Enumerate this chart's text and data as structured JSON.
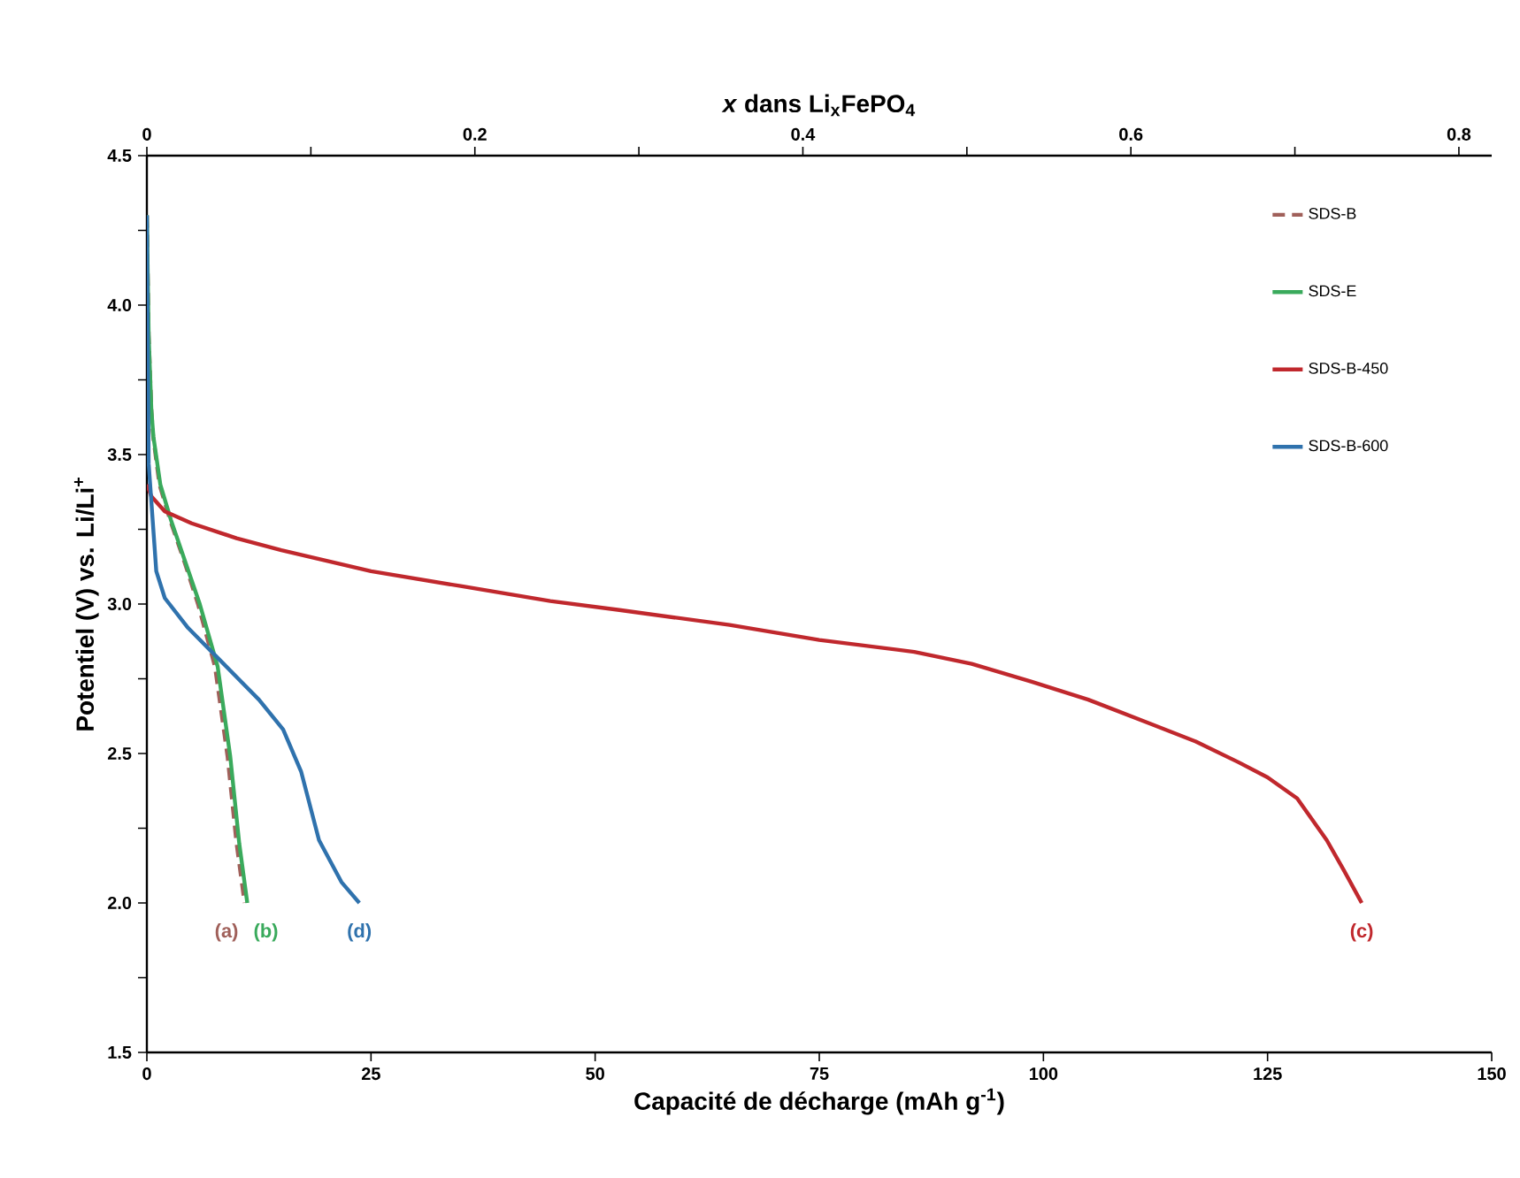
{
  "chart_data": {
    "type": "line",
    "xlabel": "Capacité de décharge (mAh g$^{-1}$)",
    "ylabel": "Potentiel (V) vs. Li/Li$^{+}$",
    "x2label": "*x* dans Li$_{x}$FePO$_{4}$",
    "xlim": [
      0,
      150
    ],
    "xticks": [
      0,
      25,
      50,
      75,
      100,
      125,
      150
    ],
    "ylim": [
      1.5,
      4.5
    ],
    "yticks": [
      {
        "value": 1.5,
        "label": "1.5"
      },
      {
        "value": 1.75,
        "label": null
      },
      {
        "value": 2,
        "label": "2.0"
      },
      {
        "value": 2.25,
        "label": null
      },
      {
        "value": 2.5,
        "label": "2.5"
      },
      {
        "value": 2.75,
        "label": null
      },
      {
        "value": 3,
        "label": "3.0"
      },
      {
        "value": 3.25,
        "label": null
      },
      {
        "value": 3.5,
        "label": "3.5"
      },
      {
        "value": 3.75,
        "label": null
      },
      {
        "value": 4,
        "label": "4.0"
      },
      {
        "value": 4.25,
        "label": null
      },
      {
        "value": 4.5,
        "label": "4.5"
      }
    ],
    "x2lim": [
      0,
      0.82
    ],
    "x2ticks": [
      0,
      {
        "value": 0.1,
        "label": null
      },
      0.2,
      {
        "value": 0.3,
        "label": null
      },
      0.4,
      {
        "value": 0.5,
        "label": null
      },
      0.6,
      {
        "value": 0.7,
        "label": null
      },
      0.8
    ],
    "legend": "top right",
    "grid": false,
    "series": [
      {
        "name": "SDS-B",
        "color": "#a0605a",
        "line_style": "dashed",
        "x": [
          0,
          0.2,
          0.5,
          0.7,
          1.4,
          2.6,
          4.2,
          5.7,
          7.6,
          9.0,
          10.0,
          10.9
        ],
        "values": [
          4.3,
          3.9,
          3.65,
          3.56,
          3.4,
          3.28,
          3.14,
          3.0,
          2.79,
          2.49,
          2.2,
          2.0
        ]
      },
      {
        "name": "SDS-E",
        "color": "#3aaa5c",
        "line_style": "solid",
        "x": [
          0,
          0.2,
          0.5,
          0.73,
          1.5,
          2.7,
          4.3,
          5.9,
          7.9,
          9.3,
          10.3,
          11.2
        ],
        "values": [
          4.3,
          3.9,
          3.65,
          3.56,
          3.4,
          3.28,
          3.14,
          3.0,
          2.79,
          2.49,
          2.2,
          2.0
        ]
      },
      {
        "name": "SDS-B-450",
        "color": "#c0282d",
        "line_style": "solid",
        "x": [
          0,
          0.5,
          2,
          5,
          10,
          15,
          25,
          35,
          45,
          52.7,
          65,
          75,
          85.6,
          92,
          98.7,
          105,
          111.9,
          117,
          121.8,
          125,
          128.3,
          131.6,
          133.5,
          135.5
        ],
        "values": [
          3.4,
          3.36,
          3.31,
          3.27,
          3.22,
          3.18,
          3.11,
          3.06,
          3.01,
          2.98,
          2.93,
          2.88,
          2.84,
          2.8,
          2.74,
          2.68,
          2.6,
          2.54,
          2.47,
          2.42,
          2.35,
          2.21,
          2.11,
          2.0
        ]
      },
      {
        "name": "SDS-B-600",
        "color": "#2f72ad",
        "line_style": "solid",
        "x": [
          0,
          0.2,
          1.05,
          2.0,
          4.6,
          7.9,
          12.5,
          15.2,
          17.2,
          19.2,
          21.7,
          23.7
        ],
        "values": [
          4.3,
          3.47,
          3.11,
          3.02,
          2.92,
          2.82,
          2.68,
          2.58,
          2.44,
          2.21,
          2.07,
          2.0
        ]
      }
    ],
    "annotations": [
      {
        "text": "(a)",
        "x": 10.9,
        "y": 2.0
      },
      {
        "text": "(b)",
        "x": 11.2,
        "y": 2.0
      },
      {
        "text": "(c)",
        "x": 135.5,
        "y": 2.0
      },
      {
        "text": "(d)",
        "x": 23.7,
        "y": 2.0
      }
    ]
  }
}
